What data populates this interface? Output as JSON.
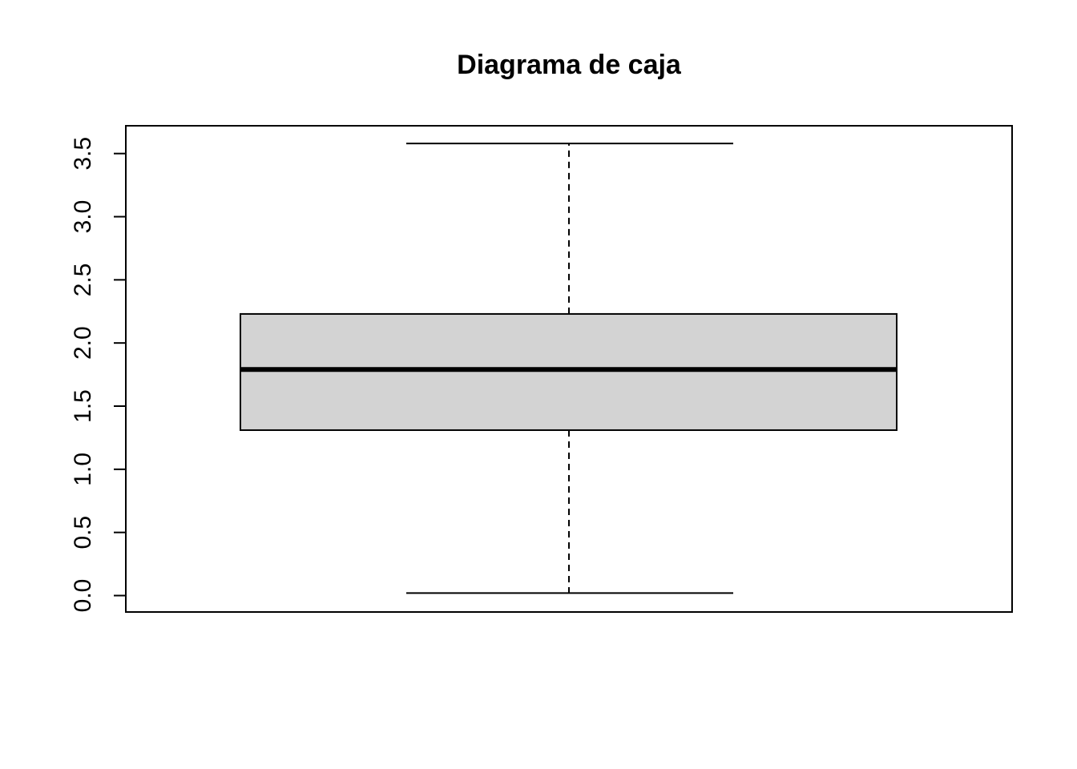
{
  "chart_data": {
    "type": "box",
    "title": "Diagrama de caja",
    "xlabel": "",
    "ylabel": "",
    "ylim": [
      -0.13,
      3.72
    ],
    "yticks": [
      0.0,
      0.5,
      1.0,
      1.5,
      2.0,
      2.5,
      3.0,
      3.5
    ],
    "ytick_labels": [
      "0.0",
      "0.5",
      "1.0",
      "1.5",
      "2.0",
      "2.5",
      "3.0",
      "3.5"
    ],
    "boxes": [
      {
        "min": 0.02,
        "q1": 1.31,
        "median": 1.79,
        "q3": 2.23,
        "max": 3.58
      }
    ],
    "colors": {
      "box_fill": "#d3d3d3",
      "line": "#000000",
      "background": "#ffffff"
    },
    "grid": false,
    "legend": "none"
  }
}
